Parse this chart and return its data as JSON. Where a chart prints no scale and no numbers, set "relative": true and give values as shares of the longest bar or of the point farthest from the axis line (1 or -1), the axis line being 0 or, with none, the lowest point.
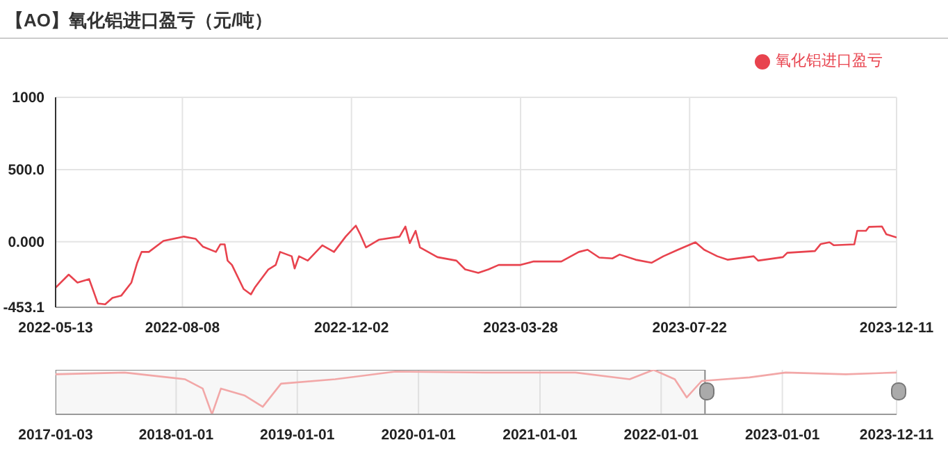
{
  "chart_data": [
    {
      "type": "line",
      "title": "【AO】氧化铝进口盈亏（元/吨）",
      "legend": "top right",
      "grid": true,
      "x": [
        "2022-05-13",
        "2022-05-22",
        "2022-05-28",
        "2022-06-05",
        "2022-06-08",
        "2022-06-11",
        "2022-06-16",
        "2022-06-21",
        "2022-06-27",
        "2022-07-04",
        "2022-07-08",
        "2022-07-11",
        "2022-07-16",
        "2022-07-26",
        "2022-08-09",
        "2022-08-17",
        "2022-08-22",
        "2022-08-31",
        "2022-09-03",
        "2022-09-06",
        "2022-09-08",
        "2022-09-11",
        "2022-09-19",
        "2022-09-24",
        "2022-09-27",
        "2022-10-06",
        "2022-10-11",
        "2022-10-14",
        "2022-10-22",
        "2022-10-24",
        "2022-10-27",
        "2022-11-02",
        "2022-11-12",
        "2022-11-20",
        "2022-11-28",
        "2022-12-05",
        "2022-12-08",
        "2022-12-12",
        "2022-12-21",
        "2023-01-04",
        "2023-01-08",
        "2023-01-11",
        "2023-01-15",
        "2023-01-18",
        "2023-01-30",
        "2023-02-12",
        "2023-02-18",
        "2023-02-27",
        "2023-03-06",
        "2023-03-13",
        "2023-03-28",
        "2023-04-06",
        "2023-04-25",
        "2023-05-07",
        "2023-05-13",
        "2023-05-21",
        "2023-05-30",
        "2023-06-04",
        "2023-06-15",
        "2023-06-26",
        "2023-07-04",
        "2023-07-14",
        "2023-07-26",
        "2023-08-01",
        "2023-08-10",
        "2023-08-17",
        "2023-09-04",
        "2023-09-07",
        "2023-09-24",
        "2023-09-27",
        "2023-10-16",
        "2023-10-20",
        "2023-10-26",
        "2023-10-29",
        "2023-11-12",
        "2023-11-14",
        "2023-11-20",
        "2023-11-22",
        "2023-12-01",
        "2023-12-04",
        "2023-12-11"
      ],
      "series": [
        {
          "name": "氧化铝进口盈亏",
          "color": "#e8434e",
          "values": [
            -318,
            -227,
            -282,
            -258,
            -342,
            -427,
            -433,
            -388,
            -373,
            -282,
            -145,
            -70,
            -70,
            6,
            36,
            21,
            -33,
            -70,
            -18,
            -18,
            -130,
            -160,
            -327,
            -364,
            -312,
            -191,
            -160,
            -70,
            -100,
            -185,
            -100,
            -130,
            -24,
            -70,
            36,
            112,
            52,
            -39,
            15,
            36,
            106,
            -9,
            76,
            -39,
            -106,
            -130,
            -191,
            -215,
            -191,
            -160,
            -160,
            -136,
            -136,
            -70,
            -55,
            -109,
            -115,
            -88,
            -124,
            -145,
            -100,
            -55,
            -3,
            -55,
            -100,
            -124,
            -100,
            -130,
            -106,
            -76,
            -64,
            -15,
            -3,
            -24,
            -18,
            76,
            76,
            103,
            106,
            52,
            30
          ]
        }
      ],
      "xlim": [
        "2022-05-13",
        "2023-12-11"
      ],
      "xticks": [
        "2022-05-13",
        "2022-08-08",
        "2022-12-02",
        "2023-03-28",
        "2023-07-22",
        "2023-12-11"
      ],
      "ylim": [
        -453.1,
        1000
      ],
      "yticks": [
        {
          "value": -453.1,
          "label": "-453.1"
        },
        {
          "value": 0,
          "label": "0.000"
        },
        {
          "value": 500,
          "label": "500.0"
        },
        1000
      ]
    },
    {
      "type": "line",
      "relative": true,
      "tick_labels": "x",
      "grid": "x",
      "x": [
        "2017-01-03",
        "2017-07-30",
        "2018-01-27",
        "2018-03-22",
        "2018-04-19",
        "2018-05-16",
        "2018-07-27",
        "2018-09-19",
        "2018-11-13",
        "2019-04-25",
        "2019-10-23",
        "2020-07-20",
        "2021-04-18",
        "2021-09-28",
        "2021-12-09",
        "2022-02-11",
        "2022-03-19",
        "2022-05-03",
        "2022-09-24",
        "2023-01-11",
        "2023-07-11",
        "2023-12-11"
      ],
      "series": [
        {
          "color": "#f2a7a7",
          "values": [
            0.9,
            0.94,
            0.79,
            0.58,
            0,
            0.58,
            0.42,
            0.17,
            0.69,
            0.79,
            0.96,
            0.94,
            0.94,
            0.79,
            1,
            0.79,
            0.38,
            0.75,
            0.83,
            0.94,
            0.9,
            0.94
          ]
        }
      ],
      "bands": [
        {
          "axis": "x",
          "from": "2017-01-03",
          "to": "2022-05-13",
          "color": "#c8c8c8"
        }
      ],
      "xlim": [
        "2017-01-03",
        "2023-12-11"
      ],
      "xticks": [
        "2017-01-03",
        "2018-01-01",
        "2019-01-01",
        "2020-01-01",
        "2021-01-01",
        "2022-01-01",
        "2023-01-01",
        "2023-12-11"
      ]
    }
  ]
}
